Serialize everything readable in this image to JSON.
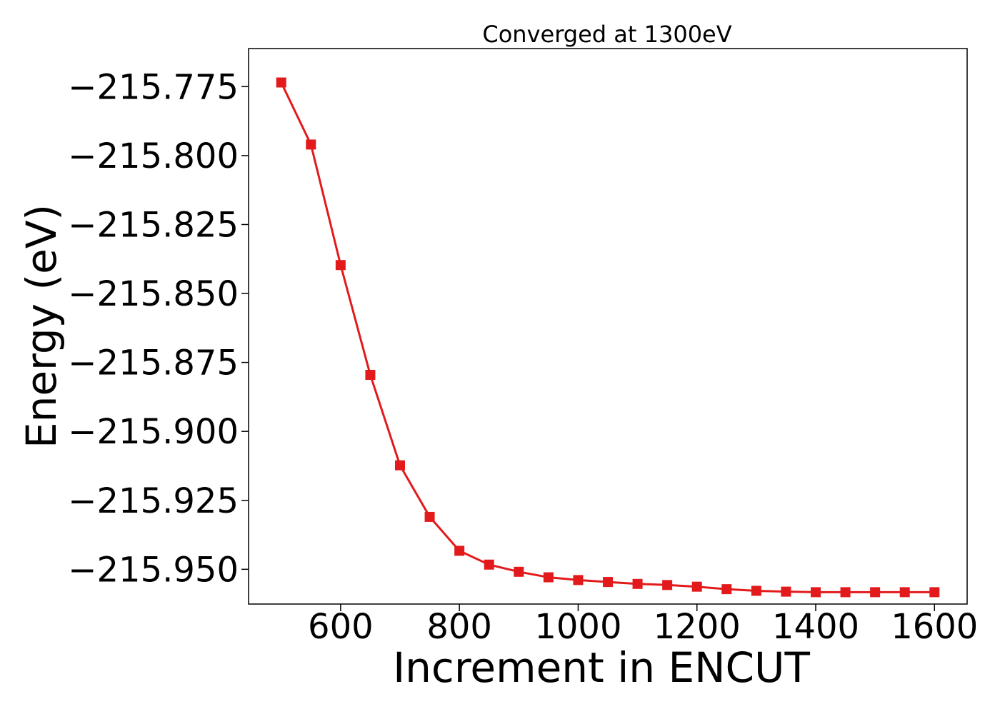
{
  "chart_data": {
    "type": "line",
    "title": "Converged at 1300eV",
    "xlabel": "Increment in ENCUT",
    "ylabel": "Energy (eV)",
    "xlim": [
      445,
      1655
    ],
    "ylim": [
      -215.9626,
      -215.7612
    ],
    "x_ticks": [
      600,
      800,
      1000,
      1200,
      1400,
      1600
    ],
    "x_tick_labels": [
      "600",
      "800",
      "1000",
      "1200",
      "1400",
      "1600"
    ],
    "y_ticks": [
      -215.775,
      -215.8,
      -215.825,
      -215.85,
      -215.875,
      -215.9,
      -215.925,
      -215.95
    ],
    "y_tick_labels": [
      "−215.775",
      "−215.800",
      "−215.825",
      "−215.850",
      "−215.875",
      "−215.900",
      "−215.925",
      "−215.950"
    ],
    "grid": false,
    "series": [
      {
        "color": "#e31a1c",
        "marker": "square",
        "x": [
          500,
          550,
          600,
          650,
          700,
          750,
          800,
          850,
          900,
          950,
          1000,
          1050,
          1100,
          1150,
          1200,
          1250,
          1300,
          1350,
          1400,
          1450,
          1500,
          1550,
          1600
        ],
        "y": [
          -215.7735,
          -215.796,
          -215.8397,
          -215.8795,
          -215.9123,
          -215.931,
          -215.9433,
          -215.9483,
          -215.9509,
          -215.9529,
          -215.9539,
          -215.9546,
          -215.9553,
          -215.9557,
          -215.9563,
          -215.9572,
          -215.9578,
          -215.9581,
          -215.9583,
          -215.9583,
          -215.9583,
          -215.9583,
          -215.9583
        ]
      }
    ]
  }
}
